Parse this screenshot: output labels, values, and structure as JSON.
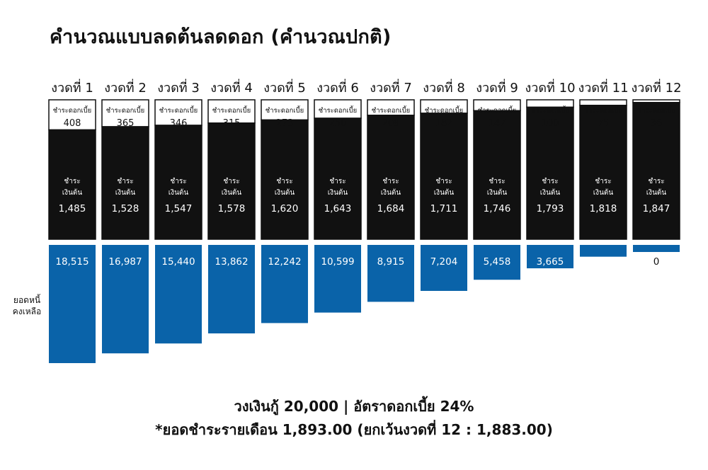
{
  "title": "คำนวณแบบลดต้นลดดอก (คำนวณปกติ)",
  "footer": {
    "line1": "วงเงินกู้ 20,000 | อัตราดอกเบี้ย 24%",
    "line2": "*ยอดชำระรายเดือน 1,893.00 (ยกเว้นงวดที่ 12 : 1,883.00)"
  },
  "colors": {
    "interest_box": "#ffffff",
    "principal_box": "#111111",
    "remaining_bar": "#0a63a9",
    "outline": "#111111"
  },
  "chart_data": {
    "type": "bar",
    "categories": [
      "งวดที่ 1",
      "งวดที่ 2",
      "งวดที่ 3",
      "งวดที่ 4",
      "งวดที่ 5",
      "งวดที่ 6",
      "งวดที่ 7",
      "งวดที่ 8",
      "งวดที่ 9",
      "งวดที่ 10",
      "งวดที่ 11",
      "งวดที่ 12"
    ],
    "stacked": true,
    "series": [
      {
        "name": "ชำระดอกเบี้ย",
        "values": [
          408,
          365,
          346,
          315,
          273,
          250,
          209,
          182,
          147,
          100,
          75,
          36
        ]
      },
      {
        "name": "ชำระ\nเงินต้น",
        "values": [
          1485,
          1528,
          1547,
          1578,
          1620,
          1643,
          1684,
          1711,
          1746,
          1793,
          1818,
          1847
        ]
      },
      {
        "name": "ยอดหนี้\nคงเหลือ",
        "values": [
          18515,
          16987,
          15440,
          13862,
          12242,
          10599,
          8915,
          7204,
          5458,
          3665,
          1847,
          0
        ]
      }
    ],
    "interest_label": "ชำระดอกเบี้ย",
    "principal_label_line1": "ชำระ",
    "principal_label_line2": "เงินต้น",
    "remaining_label_line1": "ยอดหนี้",
    "remaining_label_line2": "คงเหลือ",
    "legend": "none",
    "grid": false
  }
}
